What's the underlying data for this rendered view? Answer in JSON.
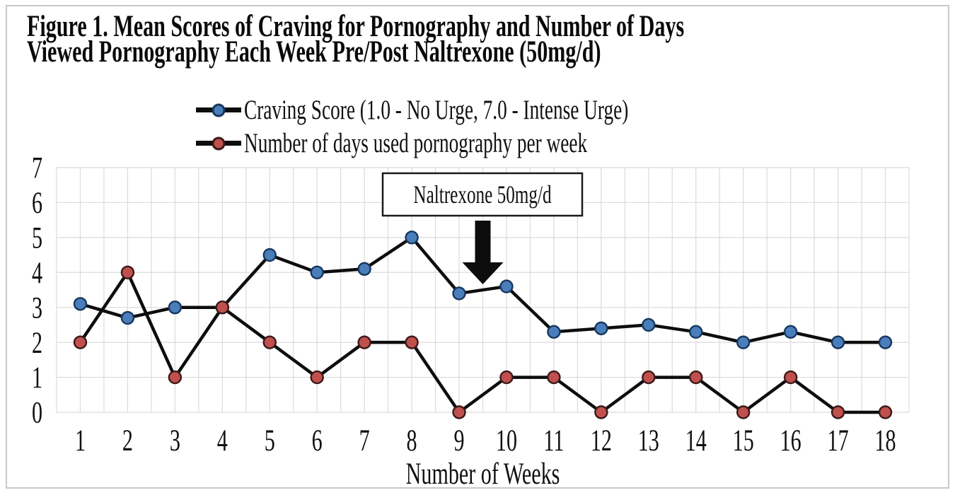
{
  "figure": {
    "title_line1": "Figure 1. Mean Scores of Craving for Pornography and Number of Days",
    "title_line2": "Viewed Pornography Each Week Pre/Post Naltrexone (50mg/d)"
  },
  "legend": {
    "entries": [
      {
        "id": "craving-score",
        "label": "Craving Score (1.0 - No Urge, 7.0 - Intense Urge)",
        "marker_color": "#4a7ebb",
        "marker_border": "#17375e",
        "line_color": "#0d0d0d"
      },
      {
        "id": "days-used",
        "label": "Number of days used pornography per week",
        "marker_color": "#c0504d",
        "marker_border": "#3b1a1a",
        "line_color": "#0d0d0d"
      }
    ]
  },
  "chart_data": {
    "type": "line",
    "title": "Figure 1. Mean Scores of Craving for Pornography and Number of Days Viewed Pornography Each Week Pre/Post Naltrexone (50mg/d)",
    "xlabel": "Number of Weeks",
    "ylabel": "",
    "x_categories": [
      "1",
      "2",
      "3",
      "4",
      "5",
      "6",
      "7",
      "8",
      "9",
      "10",
      "11",
      "12",
      "13",
      "14",
      "15",
      "16",
      "17",
      "18"
    ],
    "ylim": [
      0,
      7
    ],
    "y_ticks": [
      0,
      1,
      2,
      3,
      4,
      5,
      6,
      7
    ],
    "grid": {
      "horizontal": "every 1 unit",
      "vertical": "every 0.5 week",
      "color": "#dbdbdb"
    },
    "legend_position": "top",
    "series": [
      {
        "id": "craving-score",
        "name": "Craving Score (1.0 - No Urge, 7.0 - Intense Urge)",
        "marker_color": "#4a7ebb",
        "marker_border": "#17375e",
        "line_color": "#0d0d0d",
        "values": [
          3.1,
          2.7,
          3.0,
          3.0,
          4.5,
          4.0,
          4.1,
          5.0,
          3.4,
          3.6,
          2.3,
          2.4,
          2.5,
          2.3,
          2.0,
          2.3,
          2.0,
          2.0
        ]
      },
      {
        "id": "days-used",
        "name": "Number of days used pornography per week",
        "marker_color": "#c0504d",
        "marker_border": "#3b1a1a",
        "line_color": "#0d0d0d",
        "values": [
          2,
          4,
          1,
          3,
          2,
          1,
          2,
          2,
          0,
          1,
          1,
          0,
          1,
          1,
          0,
          1,
          0,
          0
        ]
      }
    ],
    "annotation": {
      "text": "Naltrexone 50mg/d",
      "arrow_week": 9.5
    }
  }
}
